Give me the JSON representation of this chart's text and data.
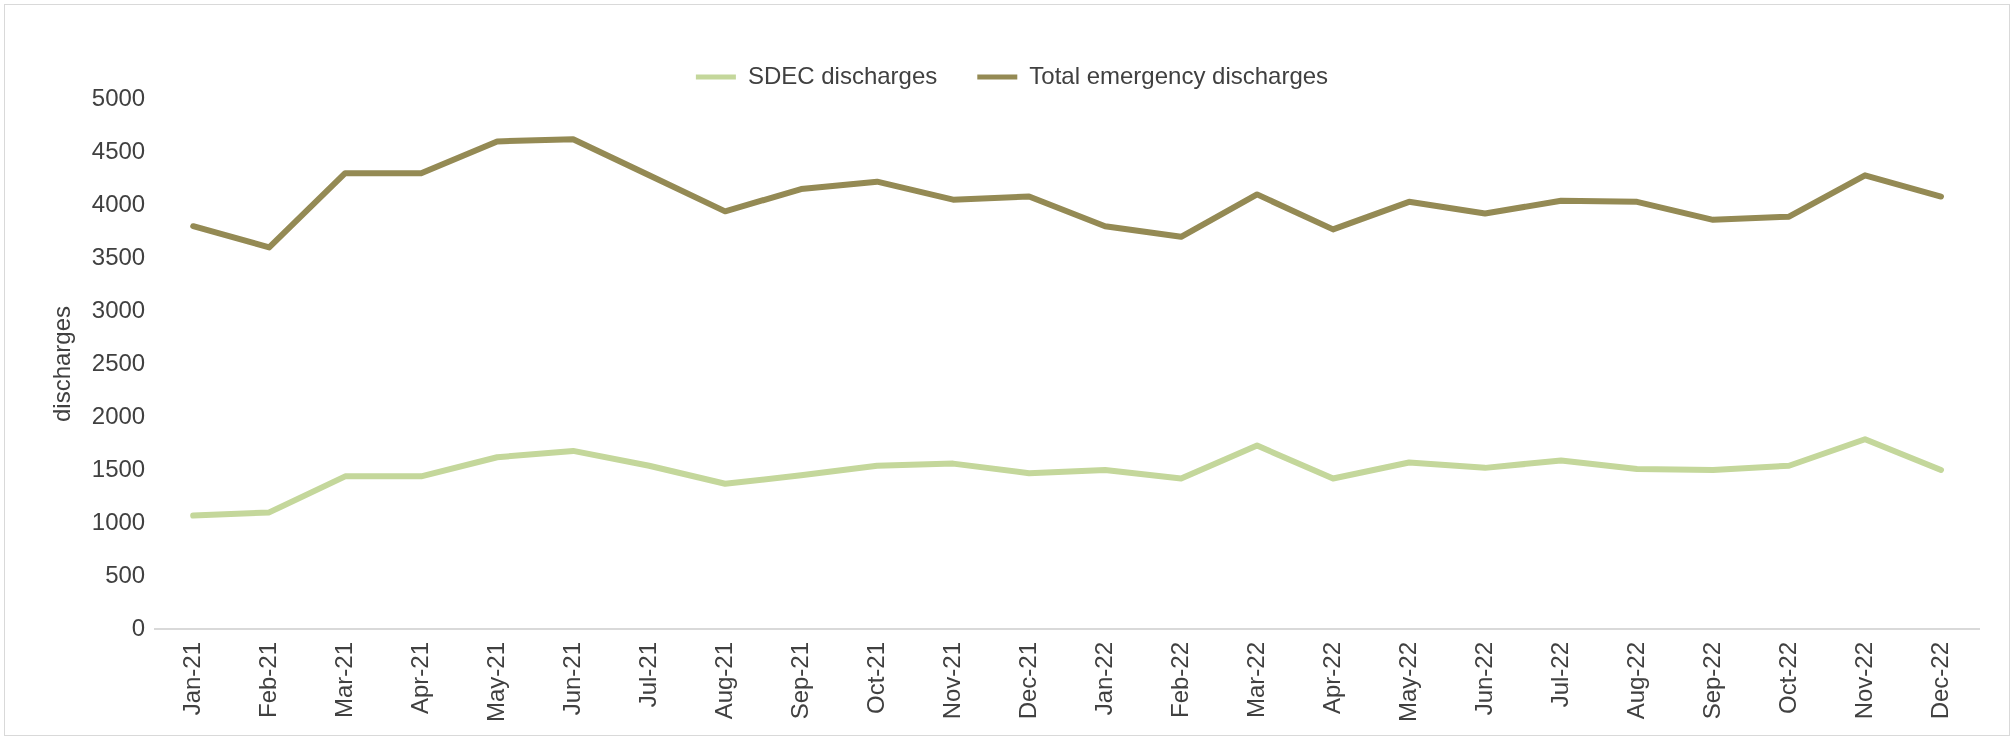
{
  "chart_data": {
    "type": "line",
    "ylabel": "discharges",
    "categories": [
      "Jan-21",
      "Feb-21",
      "Mar-21",
      "Apr-21",
      "May-21",
      "Jun-21",
      "Jul-21",
      "Aug-21",
      "Sep-21",
      "Oct-21",
      "Nov-21",
      "Dec-21",
      "Jan-22",
      "Feb-22",
      "Mar-22",
      "Apr-22",
      "May-22",
      "Jun-22",
      "Jul-22",
      "Aug-22",
      "Sep-22",
      "Oct-22",
      "Nov-22",
      "Dec-22"
    ],
    "series": [
      {
        "name": "SDEC discharges",
        "color": "#c4d79b",
        "values": [
          1070,
          1100,
          1440,
          1440,
          1620,
          1680,
          1540,
          1370,
          1450,
          1540,
          1560,
          1470,
          1500,
          1420,
          1730,
          1420,
          1570,
          1520,
          1590,
          1510,
          1500,
          1540,
          1790,
          1500
        ]
      },
      {
        "name": "Total emergency discharges",
        "color": "#948a54",
        "values": [
          3800,
          3600,
          4300,
          4300,
          4600,
          4620,
          4280,
          3940,
          4150,
          4220,
          4050,
          4080,
          3800,
          3700,
          4100,
          3770,
          4030,
          3920,
          4040,
          4030,
          3860,
          3890,
          4280,
          4080
        ]
      }
    ],
    "ylim": [
      0,
      5000
    ],
    "yticks": [
      0,
      500,
      1000,
      1500,
      2000,
      2500,
      3000,
      3500,
      4000,
      4500,
      5000
    ],
    "grid": false,
    "legend": "top",
    "marker": "none",
    "line_style": "solid"
  }
}
